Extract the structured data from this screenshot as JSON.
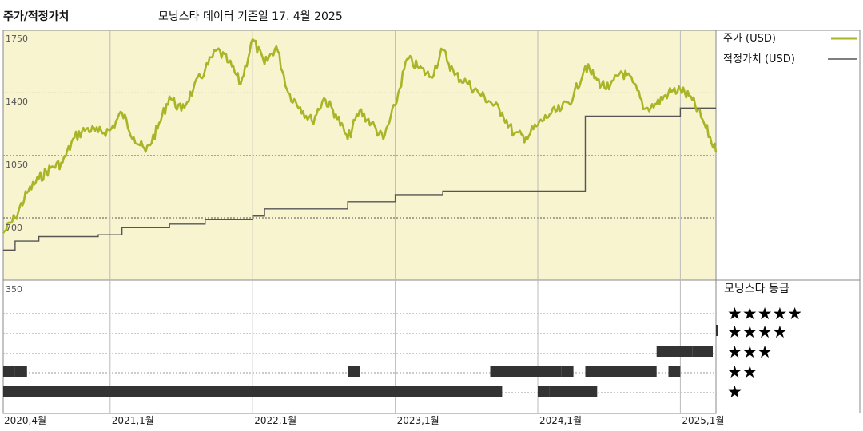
{
  "header": {
    "chart_label": "주가/적정가치",
    "source": "모닝스타 데이터 기준일 17. 4월 2025"
  },
  "legend": {
    "price_label": "주가 (USD)",
    "fair_value_label": "적정가치 (USD)"
  },
  "rating_panel": {
    "title": "모닝스타 등급",
    "levels": [
      "★★★★★",
      "★★★★",
      "★★★",
      "★★",
      "★"
    ]
  },
  "colors": {
    "price_line": "#a9b526",
    "fair_value_line": "#555555",
    "plot_background": "#f8f4cf",
    "rating_bar": "#333333"
  },
  "chart_data": {
    "type": "line",
    "x_range": [
      "2020-04",
      "2025-04"
    ],
    "ylim": [
      350,
      1750
    ],
    "y_ticks": [
      1750,
      1400,
      1050,
      700,
      350
    ],
    "x_ticks": [
      "2020,4월",
      "2021,1월",
      "2022,1월",
      "2023,1월",
      "2024,1월",
      "2025,1월"
    ],
    "grid": true,
    "legend_position": "right",
    "series": [
      {
        "name": "주가 (USD)",
        "points": [
          [
            "2020-04",
            615
          ],
          [
            "2020-05",
            700
          ],
          [
            "2020-06",
            840
          ],
          [
            "2020-07",
            920
          ],
          [
            "2020-08",
            980
          ],
          [
            "2020-09",
            1010
          ],
          [
            "2020-10",
            1150
          ],
          [
            "2020-11",
            1200
          ],
          [
            "2020-12",
            1180
          ],
          [
            "2021-01",
            1190
          ],
          [
            "2021-02",
            1290
          ],
          [
            "2021-03",
            1150
          ],
          [
            "2021-04",
            1070
          ],
          [
            "2021-05",
            1200
          ],
          [
            "2021-06",
            1380
          ],
          [
            "2021-07",
            1300
          ],
          [
            "2021-08",
            1420
          ],
          [
            "2021-09",
            1530
          ],
          [
            "2021-10",
            1640
          ],
          [
            "2021-11",
            1570
          ],
          [
            "2021-12",
            1450
          ],
          [
            "2022-01",
            1700
          ],
          [
            "2022-02",
            1560
          ],
          [
            "2022-03",
            1660
          ],
          [
            "2022-04",
            1400
          ],
          [
            "2022-05",
            1320
          ],
          [
            "2022-06",
            1240
          ],
          [
            "2022-07",
            1370
          ],
          [
            "2022-08",
            1280
          ],
          [
            "2022-09",
            1140
          ],
          [
            "2022-10",
            1300
          ],
          [
            "2022-11",
            1230
          ],
          [
            "2022-12",
            1140
          ],
          [
            "2023-01",
            1330
          ],
          [
            "2023-02",
            1590
          ],
          [
            "2023-03",
            1540
          ],
          [
            "2023-04",
            1490
          ],
          [
            "2023-05",
            1640
          ],
          [
            "2023-06",
            1500
          ],
          [
            "2023-07",
            1460
          ],
          [
            "2023-08",
            1400
          ],
          [
            "2023-09",
            1350
          ],
          [
            "2023-10",
            1290
          ],
          [
            "2023-11",
            1170
          ],
          [
            "2023-12",
            1150
          ],
          [
            "2024-01",
            1220
          ],
          [
            "2024-02",
            1280
          ],
          [
            "2024-03",
            1310
          ],
          [
            "2024-04",
            1380
          ],
          [
            "2024-05",
            1550
          ],
          [
            "2024-06",
            1470
          ],
          [
            "2024-07",
            1420
          ],
          [
            "2024-08",
            1520
          ],
          [
            "2024-09",
            1460
          ],
          [
            "2024-10",
            1310
          ],
          [
            "2024-11",
            1340
          ],
          [
            "2024-12",
            1400
          ],
          [
            "2025-01",
            1420
          ],
          [
            "2025-02",
            1360
          ],
          [
            "2025-03",
            1230
          ],
          [
            "2025-04",
            1070
          ]
        ]
      },
      {
        "name": "적정가치 (USD)",
        "points": [
          [
            "2020-04",
            520
          ],
          [
            "2020-05",
            570
          ],
          [
            "2020-07",
            595
          ],
          [
            "2020-12",
            605
          ],
          [
            "2021-02",
            645
          ],
          [
            "2021-06",
            665
          ],
          [
            "2021-09",
            690
          ],
          [
            "2022-01",
            710
          ],
          [
            "2022-02",
            750
          ],
          [
            "2022-09",
            790
          ],
          [
            "2023-01",
            830
          ],
          [
            "2023-05",
            850
          ],
          [
            "2024-05",
            1270
          ],
          [
            "2025-01",
            1315
          ],
          [
            "2025-04",
            1315
          ]
        ]
      }
    ],
    "rating_history": [
      {
        "stars": 2,
        "periods": [
          [
            "2020-04",
            "2020-04"
          ],
          [
            "2020-05",
            "2020-05"
          ],
          [
            "2022-09",
            "2022-09"
          ],
          [
            "2023-09",
            "2023-12"
          ],
          [
            "2024-01",
            "2024-02"
          ],
          [
            "2024-03",
            "2024-03"
          ],
          [
            "2024-05",
            "2024-10"
          ],
          [
            "2024-12",
            "2024-12"
          ]
        ]
      },
      {
        "stars": 1,
        "periods": [
          [
            "2020-04",
            "2023-09"
          ],
          [
            "2024-01",
            "2024-01"
          ],
          [
            "2024-02",
            "2024-03"
          ],
          [
            "2024-03",
            "2024-05"
          ]
        ]
      },
      {
        "stars": 3,
        "periods": [
          [
            "2024-11",
            "2025-01"
          ],
          [
            "2025-02",
            "2025-03"
          ]
        ]
      },
      {
        "stars": 4,
        "periods": [
          [
            "2025-04",
            "2025-04"
          ]
        ]
      }
    ]
  }
}
